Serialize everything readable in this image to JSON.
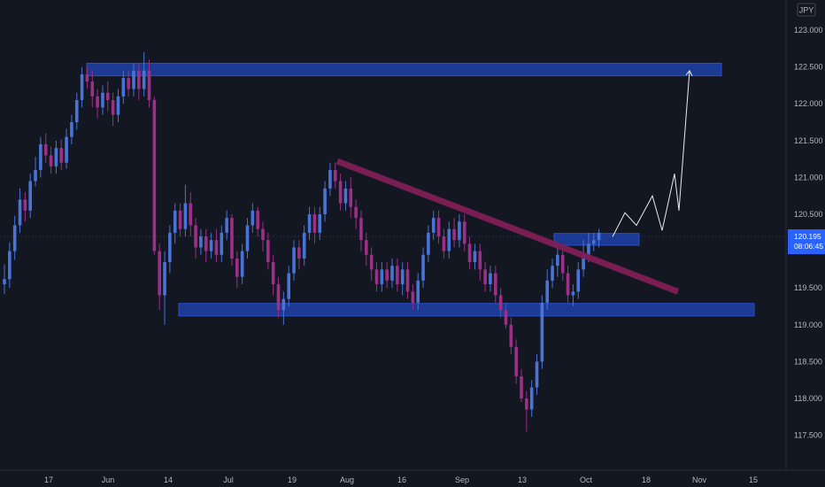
{
  "currency_label": "JPY",
  "price_badge": {
    "price": "120.195",
    "countdown": "08:06:45"
  },
  "colors": {
    "background": "#131722",
    "bull": "#4a73d6",
    "bear": "#9c2f86",
    "zone": "#1f3fa8",
    "trendline": "#7e1d56",
    "projection": "#e8eaf0",
    "axis_text": "#b2b5be",
    "badge_bg": "#2962ff"
  },
  "chart_data": {
    "type": "candlestick",
    "title": "",
    "xlabel": "",
    "ylabel": "",
    "ylim": [
      117.3,
      123.2
    ],
    "x_ticks": [
      "17",
      "Jun",
      "14",
      "Jul",
      "19",
      "Aug",
      "16",
      "Sep",
      "13",
      "Oct",
      "18",
      "Nov",
      "15"
    ],
    "y_ticks": [
      "123.000",
      "122.500",
      "122.000",
      "121.500",
      "121.000",
      "120.500",
      "120.000",
      "119.500",
      "119.000",
      "118.500",
      "118.000",
      "117.500"
    ],
    "current_price": 120.195,
    "candles": [
      [
        119.55,
        119.62,
        119.82,
        119.42
      ],
      [
        119.62,
        120.0,
        120.12,
        119.5
      ],
      [
        120.0,
        120.35,
        120.48,
        119.88
      ],
      [
        120.35,
        120.7,
        120.85,
        120.25
      ],
      [
        120.7,
        120.55,
        120.8,
        120.4
      ],
      [
        120.55,
        120.95,
        121.05,
        120.45
      ],
      [
        120.95,
        121.1,
        121.28,
        120.88
      ],
      [
        121.1,
        121.45,
        121.55,
        121.0
      ],
      [
        121.45,
        121.3,
        121.6,
        121.2
      ],
      [
        121.3,
        121.15,
        121.42,
        121.05
      ],
      [
        121.15,
        121.4,
        121.5,
        121.05
      ],
      [
        121.4,
        121.2,
        121.52,
        121.1
      ],
      [
        121.2,
        121.55,
        121.66,
        121.12
      ],
      [
        121.55,
        121.75,
        121.85,
        121.45
      ],
      [
        121.75,
        122.05,
        122.15,
        121.65
      ],
      [
        122.05,
        122.4,
        122.5,
        121.95
      ],
      [
        122.4,
        122.3,
        122.5,
        122.2
      ],
      [
        122.3,
        122.1,
        122.45,
        121.95
      ],
      [
        122.1,
        121.95,
        122.2,
        121.8
      ],
      [
        121.95,
        122.15,
        122.25,
        121.85
      ],
      [
        122.15,
        122.05,
        122.3,
        121.9
      ],
      [
        122.05,
        121.85,
        122.15,
        121.7
      ],
      [
        121.85,
        122.1,
        122.2,
        121.75
      ],
      [
        122.1,
        122.35,
        122.45,
        122.0
      ],
      [
        122.35,
        122.2,
        122.45,
        122.1
      ],
      [
        122.2,
        122.45,
        122.55,
        122.1
      ],
      [
        122.45,
        122.2,
        122.55,
        122.05
      ],
      [
        122.2,
        122.45,
        122.7,
        122.1
      ],
      [
        122.45,
        122.05,
        122.6,
        121.95
      ],
      [
        122.05,
        120.0,
        122.1,
        119.95
      ],
      [
        120.0,
        119.4,
        120.1,
        119.2
      ],
      [
        119.4,
        119.85,
        120.0,
        119.0
      ],
      [
        119.85,
        120.25,
        120.35,
        119.7
      ],
      [
        120.25,
        120.55,
        120.65,
        120.1
      ],
      [
        120.55,
        120.3,
        120.65,
        120.2
      ],
      [
        120.3,
        120.65,
        120.9,
        120.2
      ],
      [
        120.65,
        120.35,
        120.8,
        120.2
      ],
      [
        120.35,
        120.05,
        120.45,
        119.9
      ],
      [
        120.05,
        120.2,
        120.3,
        119.95
      ],
      [
        120.2,
        120.0,
        120.3,
        119.85
      ],
      [
        120.0,
        120.15,
        120.25,
        119.9
      ],
      [
        120.15,
        119.95,
        120.3,
        119.85
      ],
      [
        119.95,
        120.25,
        120.35,
        119.85
      ],
      [
        120.25,
        120.45,
        120.55,
        120.15
      ],
      [
        120.45,
        119.9,
        120.5,
        119.8
      ],
      [
        119.9,
        119.65,
        120.0,
        119.5
      ],
      [
        119.65,
        120.0,
        120.1,
        119.55
      ],
      [
        120.0,
        120.35,
        120.45,
        119.9
      ],
      [
        120.35,
        120.55,
        120.65,
        120.25
      ],
      [
        120.55,
        120.3,
        120.6,
        120.2
      ],
      [
        120.3,
        120.15,
        120.4,
        120.0
      ],
      [
        120.15,
        119.85,
        120.25,
        119.75
      ],
      [
        119.85,
        119.55,
        119.95,
        119.4
      ],
      [
        119.55,
        119.2,
        119.65,
        119.1
      ],
      [
        119.2,
        119.35,
        119.45,
        119.0
      ],
      [
        119.35,
        119.7,
        119.8,
        119.25
      ],
      [
        119.7,
        120.05,
        120.15,
        119.6
      ],
      [
        120.05,
        119.9,
        120.15,
        119.75
      ],
      [
        119.9,
        120.25,
        120.35,
        119.8
      ],
      [
        120.25,
        120.5,
        120.6,
        120.15
      ],
      [
        120.5,
        120.25,
        120.6,
        120.1
      ],
      [
        120.25,
        120.5,
        120.6,
        120.15
      ],
      [
        120.5,
        120.85,
        120.95,
        120.4
      ],
      [
        120.85,
        121.1,
        121.2,
        120.75
      ],
      [
        121.1,
        120.95,
        121.2,
        120.85
      ],
      [
        120.95,
        120.65,
        121.05,
        120.55
      ],
      [
        120.65,
        120.85,
        120.95,
        120.55
      ],
      [
        120.85,
        120.6,
        121.0,
        120.45
      ],
      [
        120.6,
        120.45,
        120.7,
        120.3
      ],
      [
        120.45,
        120.15,
        120.55,
        120.0
      ],
      [
        120.15,
        119.95,
        120.25,
        119.8
      ],
      [
        119.95,
        119.75,
        120.05,
        119.6
      ],
      [
        119.75,
        119.55,
        119.85,
        119.45
      ],
      [
        119.55,
        119.75,
        119.85,
        119.45
      ],
      [
        119.75,
        119.6,
        119.85,
        119.5
      ],
      [
        119.6,
        119.8,
        119.9,
        119.5
      ],
      [
        119.8,
        119.55,
        119.9,
        119.45
      ],
      [
        119.55,
        119.75,
        119.85,
        119.4
      ],
      [
        119.75,
        119.45,
        119.85,
        119.35
      ],
      [
        119.45,
        119.3,
        119.55,
        119.2
      ],
      [
        119.3,
        119.6,
        119.7,
        119.2
      ],
      [
        119.6,
        119.95,
        120.05,
        119.5
      ],
      [
        119.95,
        120.25,
        120.35,
        119.85
      ],
      [
        120.25,
        120.45,
        120.55,
        120.15
      ],
      [
        120.45,
        120.2,
        120.55,
        120.1
      ],
      [
        120.2,
        120.0,
        120.3,
        119.9
      ],
      [
        120.0,
        120.3,
        120.4,
        119.9
      ],
      [
        120.3,
        120.15,
        120.45,
        120.05
      ],
      [
        120.15,
        120.4,
        120.5,
        120.05
      ],
      [
        120.4,
        120.1,
        120.5,
        120.0
      ],
      [
        120.1,
        119.85,
        120.2,
        119.75
      ],
      [
        119.85,
        120.0,
        120.1,
        119.75
      ],
      [
        120.0,
        119.75,
        120.1,
        119.6
      ],
      [
        119.75,
        119.55,
        119.85,
        119.45
      ],
      [
        119.55,
        119.7,
        119.8,
        119.45
      ],
      [
        119.7,
        119.4,
        119.8,
        119.3
      ],
      [
        119.4,
        119.2,
        119.5,
        119.1
      ],
      [
        119.2,
        119.0,
        119.3,
        118.95
      ],
      [
        119.0,
        118.7,
        119.1,
        118.6
      ],
      [
        118.7,
        118.3,
        118.8,
        118.2
      ],
      [
        118.3,
        118.0,
        118.4,
        117.95
      ],
      [
        118.0,
        117.85,
        118.1,
        117.55
      ],
      [
        117.85,
        118.15,
        118.25,
        117.75
      ],
      [
        118.15,
        118.5,
        118.6,
        118.05
      ],
      [
        118.5,
        119.3,
        119.4,
        118.4
      ],
      [
        119.3,
        119.6,
        119.75,
        119.2
      ],
      [
        119.6,
        119.8,
        119.9,
        119.5
      ],
      [
        119.8,
        119.95,
        120.1,
        119.65
      ],
      [
        119.95,
        119.7,
        120.05,
        119.6
      ],
      [
        119.7,
        119.4,
        119.8,
        119.3
      ],
      [
        119.4,
        119.45,
        119.55,
        119.25
      ],
      [
        119.45,
        119.75,
        119.85,
        119.35
      ],
      [
        119.75,
        119.95,
        120.15,
        119.65
      ],
      [
        119.95,
        120.1,
        120.25,
        119.85
      ],
      [
        120.1,
        120.15,
        120.25,
        120.0
      ],
      [
        120.15,
        120.25,
        120.3,
        120.05
      ]
    ],
    "zones": [
      {
        "name": "upper-resistance-zone",
        "price_top": 122.55,
        "price_bottom": 122.38
      },
      {
        "name": "lower-support-zone",
        "price_top": 119.29,
        "price_bottom": 119.12
      },
      {
        "name": "breakout-retest-zone",
        "price_top": 120.24,
        "price_bottom": 120.08
      }
    ],
    "trendline": {
      "start_price": 121.22,
      "end_price": 119.45
    },
    "projection_prices": [
      120.195,
      120.52,
      120.35,
      120.75,
      120.28,
      121.05,
      120.55,
      122.45
    ]
  }
}
